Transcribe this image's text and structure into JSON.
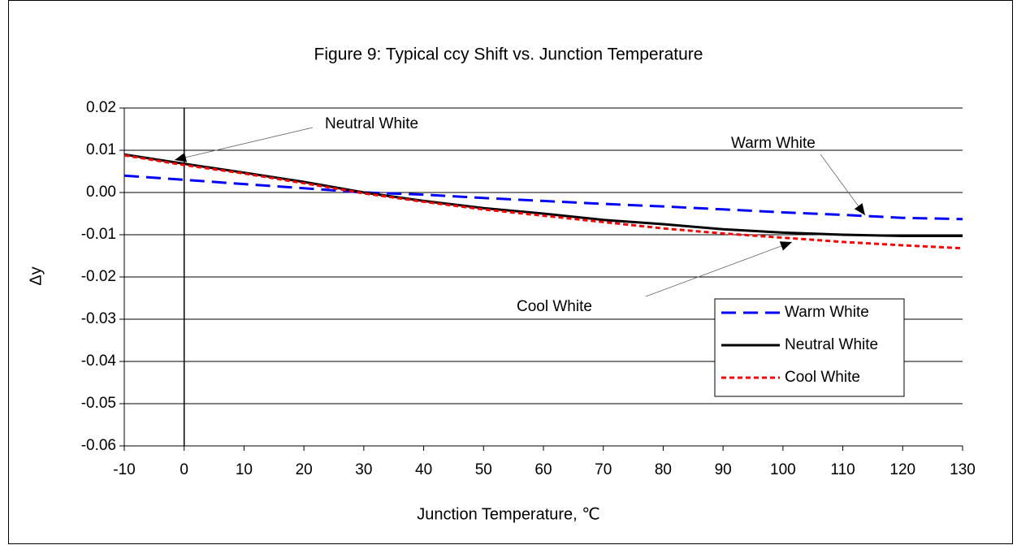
{
  "chart_data": {
    "type": "line",
    "title": "Figure 9:  Typical ccy Shift vs. Junction Temperature",
    "x_label": "Junction Temperature,  ℃",
    "y_label": "Δy",
    "x": [
      -10,
      0,
      10,
      20,
      30,
      40,
      50,
      60,
      70,
      80,
      90,
      100,
      110,
      120,
      130
    ],
    "series": [
      {
        "name": "Warm White",
        "color": "#0000ff",
        "dash": "18 9",
        "values": [
          0.004,
          0.003,
          0.002,
          0.001,
          0.0,
          -0.0005,
          -0.0013,
          -0.002,
          -0.0027,
          -0.0033,
          -0.004,
          -0.0047,
          -0.0053,
          -0.006,
          -0.0063
        ]
      },
      {
        "name": "Neutral White",
        "color": "#000000",
        "dash": "none",
        "values": [
          0.009,
          0.0068,
          0.0047,
          0.0025,
          0.0,
          -0.002,
          -0.0037,
          -0.005,
          -0.0065,
          -0.0075,
          -0.0087,
          -0.0095,
          -0.01,
          -0.0103,
          -0.0103
        ]
      },
      {
        "name": "Cool White",
        "color": "#ff0000",
        "dash": "6 4",
        "values": [
          0.0088,
          0.0065,
          0.0045,
          0.0022,
          -0.0002,
          -0.0022,
          -0.004,
          -0.0055,
          -0.007,
          -0.0085,
          -0.0097,
          -0.0107,
          -0.0117,
          -0.0125,
          -0.0132
        ]
      }
    ],
    "annotations": [
      "Neutral White",
      "Warm White",
      "Cool White"
    ],
    "xlim": [
      -10,
      130
    ],
    "xticks": [
      -10,
      0,
      10,
      20,
      30,
      40,
      50,
      60,
      70,
      80,
      90,
      100,
      110,
      120,
      130
    ],
    "ylim": [
      -0.06,
      0.02
    ],
    "yticks": [
      0.02,
      0.01,
      {
        "value": 0,
        "label": "0.00"
      },
      -0.01,
      -0.02,
      -0.03,
      -0.04,
      -0.05,
      -0.06
    ],
    "y_axis_at_x": 0,
    "grid": true,
    "legend": "lower right"
  }
}
